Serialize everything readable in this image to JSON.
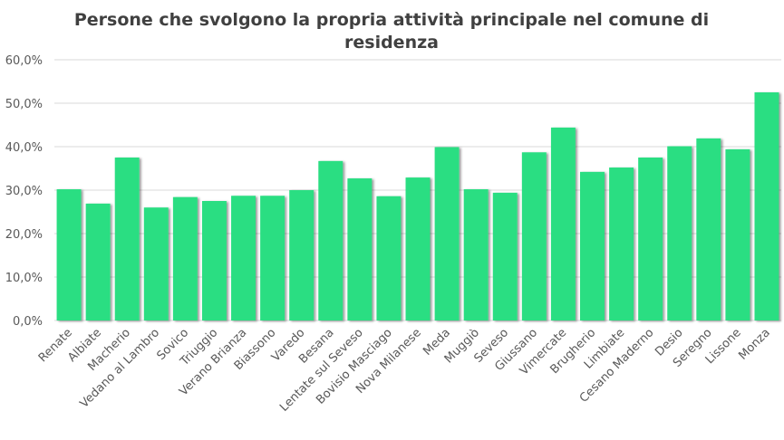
{
  "chart_data": {
    "type": "bar",
    "title": "Persone che svolgono la propria attività principale nel comune di residenza",
    "title_lines": [
      "Persone che svolgono la propria attività principale nel comune di",
      "residenza"
    ],
    "xlabel": "",
    "ylabel": "",
    "ylim": [
      0,
      60
    ],
    "yticks": [
      0,
      10,
      20,
      30,
      40,
      50,
      60
    ],
    "ytick_labels": [
      "0,0%",
      "10,0%",
      "20,0%",
      "30,0%",
      "40,0%",
      "50,0%",
      "60,0%"
    ],
    "grid": true,
    "legend": "none",
    "bar_color": "#2ade82",
    "categories": [
      "Renate",
      "Albiate",
      "Macherio",
      "Vedano al Lambro",
      "Sovico",
      "Triuggio",
      "Verano Brianza",
      "Biassono",
      "Varedo",
      "Besana",
      "Lentate sul Seveso",
      "Bovisio Masciago",
      "Nova Milanese",
      "Meda",
      "Muggiò",
      "Seveso",
      "Giussano",
      "Vimercate",
      "Brugherio",
      "Limbiate",
      "Cesano Maderno",
      "Desio",
      "Seregno",
      "Lissone",
      "Monza"
    ],
    "values": [
      30.2,
      26.9,
      37.5,
      26.0,
      28.4,
      27.5,
      28.7,
      28.7,
      30.0,
      36.7,
      32.7,
      28.6,
      32.9,
      39.9,
      30.2,
      29.4,
      38.7,
      44.4,
      34.2,
      35.2,
      37.5,
      40.1,
      41.9,
      39.4,
      52.5
    ]
  }
}
